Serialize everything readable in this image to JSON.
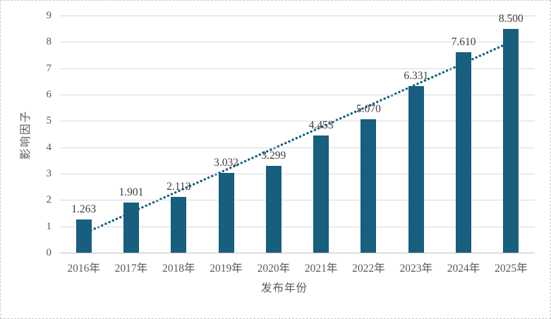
{
  "chart_data": {
    "type": "bar",
    "title": "",
    "categories": [
      "2016年",
      "2017年",
      "2018年",
      "2019年",
      "2020年",
      "2021年",
      "2022年",
      "2023年",
      "2024年",
      "2025年"
    ],
    "values": [
      1.263,
      1.901,
      2.113,
      3.032,
      3.299,
      4.453,
      5.07,
      6.331,
      7.61,
      8.5
    ],
    "value_labels": [
      "1.263",
      "1.901",
      "2.113",
      "3.032",
      "3.299",
      "4.453",
      "5.070",
      "6.331",
      "7.610",
      "8.500"
    ],
    "xlabel": "发布年份",
    "ylabel": "影响因子",
    "ylim": [
      0,
      9
    ],
    "ytick_step": 1,
    "yticks": [
      "0",
      "1",
      "2",
      "3",
      "4",
      "5",
      "6",
      "7",
      "8",
      "9"
    ],
    "grid": true,
    "legend": "none",
    "trendline": {
      "type": "linear",
      "style": "dotted",
      "start_value": 0.72,
      "end_value": 8.0
    },
    "colors": {
      "bar": "#175e7f",
      "trendline": "#175e7f",
      "gridline": "#d9d9d9",
      "axis_line": "#bfbfbf",
      "tick_text": "#595959",
      "data_label_text": "#3d3d3d",
      "frame_border": "#c8c8c8"
    }
  }
}
